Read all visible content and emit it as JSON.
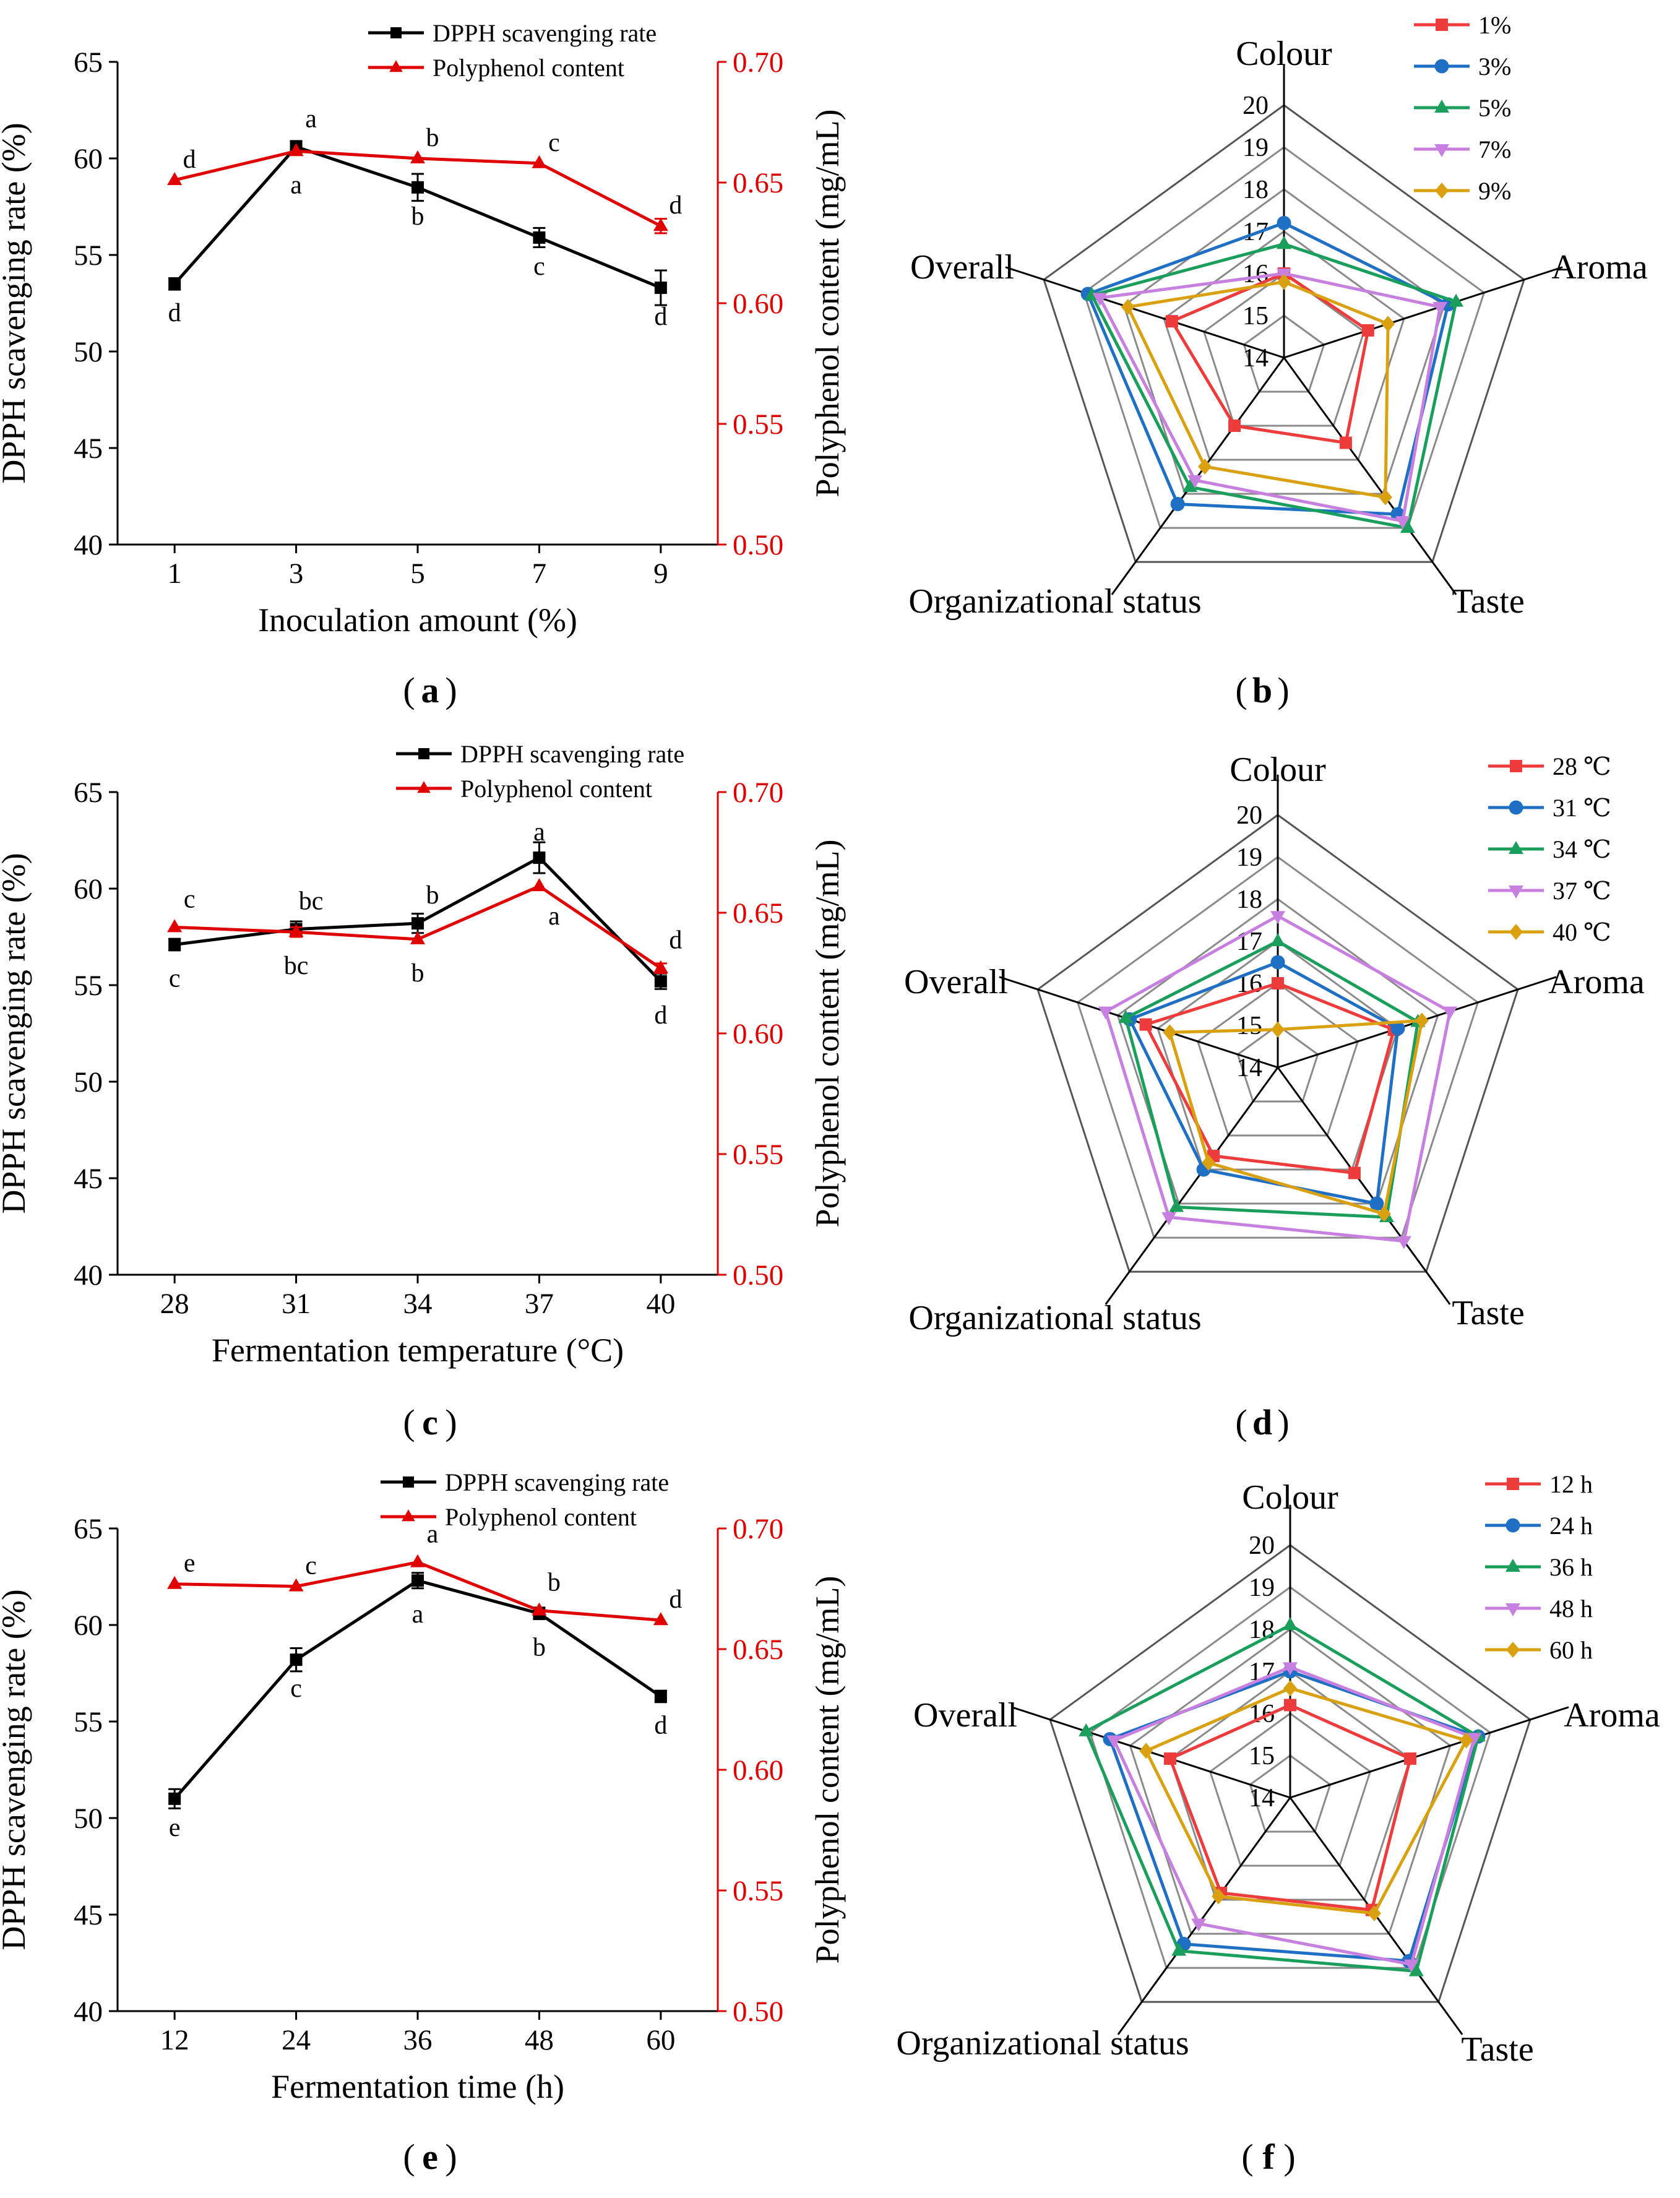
{
  "chart_data": [
    {
      "id": "a",
      "type": "line",
      "caption_label": "a",
      "xlabel": "Inoculation amount (%)",
      "ylabel": "DPPH scavenging rate (%)",
      "y2label": "Polyphenol content (mg/mL)",
      "categories": [
        "1",
        "3",
        "5",
        "7",
        "9"
      ],
      "ylim": [
        40,
        65
      ],
      "yticks": [
        "40",
        "45",
        "50",
        "55",
        "60",
        "65"
      ],
      "y2lim": [
        0.5,
        0.7
      ],
      "y2ticks": [
        "0.50",
        "0.55",
        "0.60",
        "0.65",
        "0.70"
      ],
      "legend": [
        "DPPH scavenging rate",
        "Polyphenol content"
      ],
      "series": [
        {
          "name": "DPPH scavenging rate",
          "axis": "left",
          "color": "#000000",
          "marker": "square",
          "values": [
            53.5,
            60.6,
            58.5,
            55.9,
            53.3
          ],
          "errors": [
            0.3,
            0.3,
            0.7,
            0.5,
            0.9
          ],
          "labels": [
            "d",
            "a",
            "b",
            "c",
            "d"
          ]
        },
        {
          "name": "Polyphenol content",
          "axis": "right",
          "color": "#e00000",
          "marker": "triangle",
          "values": [
            0.651,
            0.663,
            0.66,
            0.658,
            0.632
          ],
          "errors": [
            0,
            0,
            0,
            0,
            0.003
          ],
          "labels": [
            "d",
            "a",
            "b",
            "c",
            "d"
          ]
        }
      ]
    },
    {
      "id": "b",
      "type": "radar",
      "caption_label": "b",
      "axes": [
        "Colour",
        "Aroma",
        "Taste",
        "Organizational status",
        "Overall"
      ],
      "rticks": [
        "14",
        "15",
        "16",
        "17",
        "18",
        "19",
        "20"
      ],
      "rmin": 14,
      "rmax": 20,
      "series": [
        {
          "name": "1%",
          "color": "#ee3b3b",
          "marker": "square",
          "values": [
            16.0,
            16.1,
            16.5,
            16.0,
            16.8
          ]
        },
        {
          "name": "3%",
          "color": "#1f6fc5",
          "marker": "circle",
          "values": [
            17.2,
            18.1,
            18.6,
            18.3,
            18.9
          ]
        },
        {
          "name": "5%",
          "color": "#1a9e5c",
          "marker": "triangle",
          "values": [
            16.7,
            18.3,
            19.0,
            17.8,
            18.8
          ]
        },
        {
          "name": "7%",
          "color": "#c77fe0",
          "marker": "triangle-down",
          "values": [
            16.0,
            17.9,
            18.8,
            17.6,
            18.6
          ]
        },
        {
          "name": "9%",
          "color": "#d9a00f",
          "marker": "diamond",
          "values": [
            15.8,
            16.6,
            18.1,
            17.2,
            17.9
          ]
        }
      ]
    },
    {
      "id": "c",
      "type": "line",
      "caption_label": "c",
      "xlabel": "Fermentation temperature (°C)",
      "ylabel": "DPPH scavenging rate (%)",
      "y2label": "Polyphenol content (mg/mL)",
      "categories": [
        "28",
        "31",
        "34",
        "37",
        "40"
      ],
      "ylim": [
        40,
        65
      ],
      "yticks": [
        "40",
        "45",
        "50",
        "55",
        "60",
        "65"
      ],
      "y2lim": [
        0.5,
        0.7
      ],
      "y2ticks": [
        "0.50",
        "0.55",
        "0.60",
        "0.65",
        "0.70"
      ],
      "legend": [
        "DPPH scavenging rate",
        "Polyphenol content"
      ],
      "series": [
        {
          "name": "DPPH scavenging rate",
          "axis": "left",
          "color": "#000000",
          "marker": "square",
          "values": [
            57.1,
            57.9,
            58.2,
            61.6,
            55.2
          ],
          "errors": [
            0.3,
            0.4,
            0.5,
            0.8,
            0.4
          ],
          "labels": [
            "c",
            "bc",
            "b",
            "a",
            "d"
          ]
        },
        {
          "name": "Polyphenol content",
          "axis": "right",
          "color": "#e00000",
          "marker": "triangle",
          "values": [
            0.644,
            0.642,
            0.639,
            0.661,
            0.627
          ],
          "errors": [
            0,
            0.002,
            0,
            0,
            0.002
          ],
          "labels": [
            "c",
            "bc",
            "b",
            "a",
            "d"
          ]
        }
      ]
    },
    {
      "id": "d",
      "type": "radar",
      "caption_label": "d",
      "axes": [
        "Colour",
        "Aroma",
        "Taste",
        "Organizational status",
        "Overall"
      ],
      "rticks": [
        "14",
        "15",
        "16",
        "17",
        "18",
        "19",
        "20"
      ],
      "rmin": 14,
      "rmax": 20,
      "series": [
        {
          "name": "28 ℃",
          "color": "#ee3b3b",
          "marker": "square",
          "values": [
            16.0,
            16.9,
            17.1,
            16.6,
            17.3
          ]
        },
        {
          "name": "31 ℃",
          "color": "#1f6fc5",
          "marker": "circle",
          "values": [
            16.5,
            17.0,
            18.0,
            17.0,
            17.7
          ]
        },
        {
          "name": "34 ℃",
          "color": "#1a9e5c",
          "marker": "triangle",
          "values": [
            17.0,
            17.5,
            18.4,
            18.1,
            17.8
          ]
        },
        {
          "name": "37 ℃",
          "color": "#c77fe0",
          "marker": "triangle-down",
          "values": [
            17.6,
            18.3,
            19.1,
            18.4,
            18.3
          ]
        },
        {
          "name": "40 ℃",
          "color": "#d9a00f",
          "marker": "diamond",
          "values": [
            14.9,
            17.6,
            18.3,
            16.8,
            16.7
          ]
        }
      ]
    },
    {
      "id": "e",
      "type": "line",
      "caption_label": "e",
      "xlabel": "Fermentation time (h)",
      "ylabel": "DPPH scavenging rate (%)",
      "y2label": "Polyphenol content (mg/mL)",
      "categories": [
        "12",
        "24",
        "36",
        "48",
        "60"
      ],
      "ylim": [
        40,
        65
      ],
      "yticks": [
        "40",
        "45",
        "50",
        "55",
        "60",
        "65"
      ],
      "y2lim": [
        0.5,
        0.7
      ],
      "y2ticks": [
        "0.50",
        "0.55",
        "0.60",
        "0.65",
        "0.70"
      ],
      "legend": [
        "DPPH scavenging rate",
        "Polyphenol content"
      ],
      "series": [
        {
          "name": "DPPH scavenging rate",
          "axis": "left",
          "color": "#000000",
          "marker": "square",
          "values": [
            51.0,
            58.2,
            62.3,
            60.6,
            56.3
          ],
          "errors": [
            0.5,
            0.6,
            0.4,
            0.3,
            0.3
          ],
          "labels": [
            "e",
            "c",
            "a",
            "b",
            "d"
          ]
        },
        {
          "name": "Polyphenol content",
          "axis": "right",
          "color": "#e00000",
          "marker": "triangle",
          "values": [
            0.677,
            0.676,
            0.686,
            0.666,
            0.662
          ],
          "errors": [
            0,
            0,
            0,
            0,
            0
          ],
          "labels": [
            "e",
            "c",
            "a",
            "b",
            "d"
          ]
        }
      ]
    },
    {
      "id": "f",
      "type": "radar",
      "caption_label": "f",
      "axes": [
        "Colour",
        "Aroma",
        "Taste",
        "Organizational status",
        "Overall"
      ],
      "rticks": [
        "14",
        "15",
        "16",
        "17",
        "18",
        "19",
        "20"
      ],
      "rmin": 14,
      "rmax": 20,
      "series": [
        {
          "name": "12 h",
          "color": "#ee3b3b",
          "marker": "square",
          "values": [
            16.2,
            17.0,
            17.3,
            16.8,
            17.0
          ]
        },
        {
          "name": "24 h",
          "color": "#1f6fc5",
          "marker": "circle",
          "values": [
            17.0,
            18.7,
            18.8,
            18.3,
            18.5
          ]
        },
        {
          "name": "36 h",
          "color": "#1a9e5c",
          "marker": "triangle",
          "values": [
            18.1,
            18.7,
            19.1,
            18.5,
            19.1
          ]
        },
        {
          "name": "48 h",
          "color": "#c77fe0",
          "marker": "triangle-down",
          "values": [
            17.1,
            18.6,
            18.9,
            17.7,
            18.4
          ]
        },
        {
          "name": "60 h",
          "color": "#d9a00f",
          "marker": "diamond",
          "values": [
            16.6,
            18.4,
            17.4,
            16.9,
            17.6
          ]
        }
      ]
    }
  ]
}
